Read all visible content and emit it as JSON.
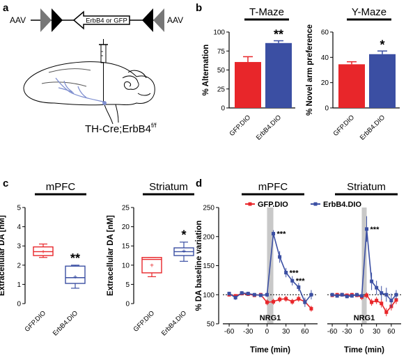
{
  "panels": {
    "a": "a",
    "b": "b",
    "c": "c",
    "d": "d"
  },
  "construct": {
    "left_label": "AAV",
    "right_label": "AAV",
    "gene_label": "ErbB4 or GFP"
  },
  "brain_label": "TH-Cre;ErbB4",
  "brain_label_sup": "f/f",
  "colors": {
    "gfp": "#e8262a",
    "erbb4": "#3b4fa3",
    "stim_band": "#c8c8c8"
  },
  "chart_data": [
    {
      "id": "tmaze",
      "type": "bar",
      "title": "T-Maze",
      "ylabel": "% Alternation",
      "categories": [
        "GFP.DIO",
        "ErbB4.DIO"
      ],
      "values": [
        60.5,
        85.5
      ],
      "errors": [
        7,
        3
      ],
      "ylim": [
        0,
        100
      ],
      "yticks": [
        0,
        25,
        50,
        75,
        100
      ],
      "significance": "**"
    },
    {
      "id": "ymaze",
      "type": "bar",
      "title": "Y-Maze",
      "ylabel": "% Novel arm preference",
      "categories": [
        "GFP.DIO",
        "ErbB4.DIO"
      ],
      "values": [
        34.5,
        42.5
      ],
      "errors": [
        2,
        2.5
      ],
      "ylim": [
        0,
        60
      ],
      "yticks": [
        0,
        20,
        40,
        60
      ],
      "significance": "*"
    },
    {
      "id": "mpfc_box",
      "type": "box",
      "title": "mPFC",
      "ylabel": "Extracellular DA [nM]",
      "categories": [
        "GFP.DIO",
        "ErbB4.DIO"
      ],
      "boxes": [
        {
          "min": 2.4,
          "q1": 2.5,
          "median": 2.7,
          "q3": 2.95,
          "max": 3.1,
          "mean": 2.7
        },
        {
          "min": 0.8,
          "q1": 1.05,
          "median": 1.35,
          "q3": 1.95,
          "max": 2.0,
          "mean": 1.4
        }
      ],
      "ylim": [
        0,
        5
      ],
      "yticks": [
        0,
        1,
        2,
        3,
        4,
        5
      ],
      "significance": "**"
    },
    {
      "id": "striatum_box",
      "type": "box",
      "title": "Striatum",
      "ylabel": "Extracellular DA [nM]",
      "categories": [
        "GFP.DIO",
        "ErbB4.DIO"
      ],
      "boxes": [
        {
          "min": 7,
          "q1": 8,
          "median": 11.5,
          "q3": 12,
          "max": 12,
          "mean": 10
        },
        {
          "min": 11,
          "q1": 12.5,
          "median": 13.5,
          "q3": 14.5,
          "max": 16,
          "mean": 13.7
        }
      ],
      "ylim": [
        0,
        25
      ],
      "yticks": [
        0,
        5,
        10,
        15,
        20,
        25
      ],
      "significance": "*"
    },
    {
      "id": "timecourse",
      "type": "line",
      "ylabel": "% DA baseline variation",
      "xlabel": "Time (min)",
      "legend": [
        "GFP.DIO",
        "ErbB4.DIO"
      ],
      "stim_label": "NRG1",
      "stim_window": [
        0,
        10
      ],
      "ylim": [
        50,
        250
      ],
      "yticks": [
        50,
        100,
        150,
        200,
        250
      ],
      "panels": [
        {
          "title": "mPFC",
          "x": [
            -60,
            -50,
            -40,
            -30,
            -20,
            -10,
            0,
            10,
            20,
            30,
            40,
            50,
            60,
            70
          ],
          "xticks": [
            -60,
            -30,
            0,
            30,
            60
          ],
          "series": [
            {
              "name": "GFP.DIO",
              "values": [
                100,
                98,
                102,
                101,
                99,
                100,
                87,
                88,
                92,
                93,
                88,
                93,
                88,
                76
              ],
              "errors": [
                3,
                3,
                3,
                3,
                3,
                3,
                5,
                5,
                5,
                5,
                5,
                5,
                5,
                5
              ]
            },
            {
              "name": "ErbB4.DIO",
              "values": [
                102,
                95,
                103,
                102,
                100,
                99,
                100,
                205,
                165,
                138,
                124,
                113,
                87,
                100
              ],
              "errors": [
                3,
                4,
                3,
                3,
                3,
                3,
                4,
                6,
                10,
                8,
                8,
                7,
                8,
                8
              ]
            }
          ],
          "annotations": [
            {
              "x": 10,
              "y": 205,
              "text": "***"
            },
            {
              "x": 30,
              "y": 138,
              "text": "***"
            },
            {
              "x": 40,
              "y": 124,
              "text": "***"
            }
          ]
        },
        {
          "title": "Striatum",
          "x": [
            -60,
            -50,
            -40,
            -30,
            -20,
            -10,
            0,
            10,
            20,
            30,
            40,
            50,
            60,
            70
          ],
          "xticks": [
            -60,
            -30,
            0,
            30,
            60
          ],
          "series": [
            {
              "name": "GFP.DIO",
              "values": [
                99,
                100,
                100,
                99,
                100,
                99,
                96,
                99,
                87,
                90,
                85,
                70,
                80,
                91
              ],
              "errors": [
                3,
                3,
                3,
                3,
                3,
                3,
                5,
                5,
                6,
                6,
                7,
                7,
                7,
                7
              ]
            },
            {
              "name": "ErbB4.DIO",
              "values": [
                100,
                98,
                100,
                97,
                98,
                100,
                98,
                213,
                123,
                112,
                103,
                100,
                90,
                100
              ],
              "errors": [
                3,
                3,
                3,
                3,
                3,
                3,
                3,
                22,
                15,
                12,
                12,
                12,
                12,
                8
              ]
            }
          ],
          "annotations": [
            {
              "x": 10,
              "y": 213,
              "text": "***"
            }
          ]
        }
      ]
    }
  ]
}
